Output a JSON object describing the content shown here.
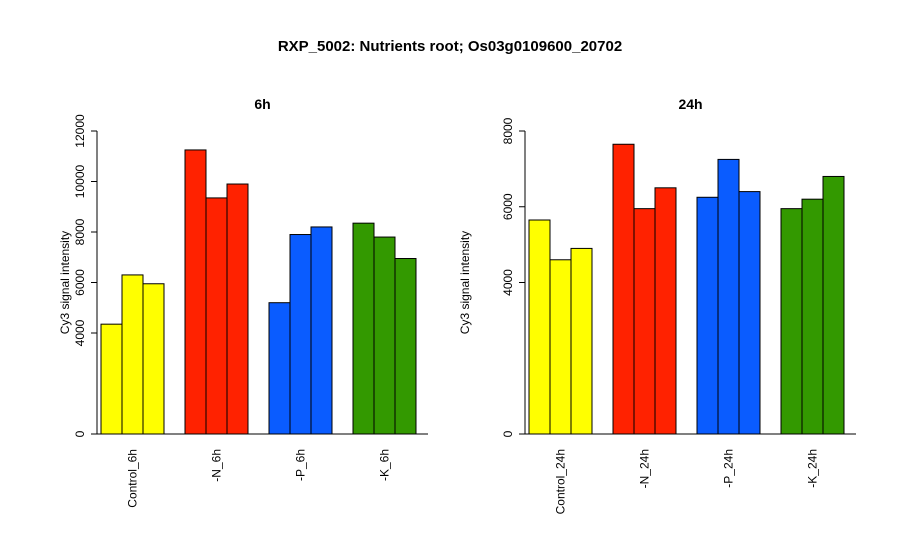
{
  "title": "RXP_5002: Nutrients root; Os03g0109600_20702",
  "chart_data": [
    {
      "type": "bar",
      "title": "6h",
      "ylabel": "Cy3 signal intensity",
      "ylim": [
        0,
        12000
      ],
      "yticks": [
        0,
        4000,
        6000,
        8000,
        10000,
        12000
      ],
      "categories": [
        "Control_6h",
        "-N_6h",
        "-P_6h",
        "-K_6h"
      ],
      "colors": [
        "#ffff00",
        "#ff2200",
        "#0a5cff",
        "#339900"
      ],
      "groups": [
        [
          4350,
          6300,
          5950
        ],
        [
          11250,
          9350,
          9900
        ],
        [
          5200,
          7900,
          8200
        ],
        [
          8350,
          7800,
          6950
        ]
      ]
    },
    {
      "type": "bar",
      "title": "24h",
      "ylabel": "Cy3 signal intensity",
      "ylim": [
        0,
        8000
      ],
      "yticks": [
        0,
        4000,
        6000,
        8000
      ],
      "categories": [
        "Control_24h",
        "-N_24h",
        "-P_24h",
        "-K_24h"
      ],
      "colors": [
        "#ffff00",
        "#ff2200",
        "#0a5cff",
        "#339900"
      ],
      "groups": [
        [
          5650,
          4600,
          4900
        ],
        [
          7650,
          5950,
          6500
        ],
        [
          6250,
          7250,
          6400
        ],
        [
          5950,
          6200,
          6800
        ]
      ]
    }
  ]
}
